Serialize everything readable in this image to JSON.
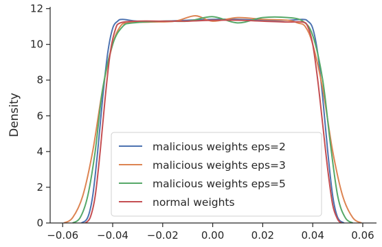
{
  "chart_data": {
    "type": "line",
    "title": "",
    "xlabel": "",
    "ylabel": "Density",
    "xlim": [
      -0.065,
      0.0655
    ],
    "ylim": [
      0,
      12.1
    ],
    "x_ticks": [
      -0.06,
      -0.04,
      -0.02,
      0.0,
      0.02,
      0.04,
      0.06
    ],
    "x_tick_labels": [
      "−0.06",
      "−0.04",
      "−0.02",
      "0.00",
      "0.02",
      "0.04",
      "0.06"
    ],
    "y_ticks": [
      0,
      2,
      4,
      6,
      8,
      10,
      12
    ],
    "y_tick_labels": [
      "0",
      "2",
      "4",
      "6",
      "8",
      "10",
      "12"
    ],
    "grid": false,
    "legend_position": "bottom-center",
    "series": [
      {
        "name": "malicious weights eps=2",
        "color": "#4c72b0",
        "points": [
          [
            -0.0525,
            0
          ],
          [
            -0.05,
            0.3
          ],
          [
            -0.048,
            1.5
          ],
          [
            -0.046,
            4.0
          ],
          [
            -0.044,
            7.0
          ],
          [
            -0.042,
            9.5
          ],
          [
            -0.04,
            10.9
          ],
          [
            -0.038,
            11.3
          ],
          [
            -0.036,
            11.4
          ],
          [
            -0.03,
            11.3
          ],
          [
            -0.02,
            11.3
          ],
          [
            -0.01,
            11.35
          ],
          [
            0.0,
            11.4
          ],
          [
            0.01,
            11.4
          ],
          [
            0.02,
            11.35
          ],
          [
            0.03,
            11.35
          ],
          [
            0.036,
            11.4
          ],
          [
            0.038,
            11.3
          ],
          [
            0.04,
            10.9
          ],
          [
            0.042,
            9.5
          ],
          [
            0.044,
            7.0
          ],
          [
            0.046,
            4.0
          ],
          [
            0.048,
            1.5
          ],
          [
            0.05,
            0.3
          ],
          [
            0.0525,
            0
          ]
        ]
      },
      {
        "name": "malicious weights eps=3",
        "color": "#dd8452",
        "points": [
          [
            -0.0595,
            0
          ],
          [
            -0.056,
            0.3
          ],
          [
            -0.052,
            1.5
          ],
          [
            -0.048,
            4.0
          ],
          [
            -0.044,
            7.5
          ],
          [
            -0.04,
            10.0
          ],
          [
            -0.037,
            11.0
          ],
          [
            -0.034,
            11.2
          ],
          [
            -0.025,
            11.25
          ],
          [
            -0.015,
            11.3
          ],
          [
            -0.007,
            11.6
          ],
          [
            0.0,
            11.3
          ],
          [
            0.01,
            11.5
          ],
          [
            0.02,
            11.4
          ],
          [
            0.03,
            11.35
          ],
          [
            0.034,
            11.2
          ],
          [
            0.037,
            11.0
          ],
          [
            0.04,
            10.0
          ],
          [
            0.044,
            7.5
          ],
          [
            0.048,
            4.0
          ],
          [
            0.052,
            1.5
          ],
          [
            0.056,
            0.3
          ],
          [
            0.0595,
            0
          ]
        ]
      },
      {
        "name": "malicious weights eps=5",
        "color": "#55a868",
        "points": [
          [
            -0.056,
            0
          ],
          [
            -0.053,
            0.3
          ],
          [
            -0.05,
            1.5
          ],
          [
            -0.047,
            4.0
          ],
          [
            -0.044,
            7.5
          ],
          [
            -0.04,
            10.0
          ],
          [
            -0.036,
            11.0
          ],
          [
            -0.032,
            11.2
          ],
          [
            -0.02,
            11.3
          ],
          [
            -0.01,
            11.3
          ],
          [
            0.0,
            11.55
          ],
          [
            0.01,
            11.2
          ],
          [
            0.02,
            11.5
          ],
          [
            0.03,
            11.5
          ],
          [
            0.036,
            11.3
          ],
          [
            0.04,
            10.5
          ],
          [
            0.044,
            8.0
          ],
          [
            0.047,
            4.5
          ],
          [
            0.05,
            1.5
          ],
          [
            0.053,
            0.3
          ],
          [
            0.056,
            0
          ]
        ]
      },
      {
        "name": "normal weights",
        "color": "#c44e52",
        "points": [
          [
            -0.051,
            0
          ],
          [
            -0.049,
            0.3
          ],
          [
            -0.047,
            1.5
          ],
          [
            -0.045,
            4.0
          ],
          [
            -0.043,
            7.0
          ],
          [
            -0.041,
            9.5
          ],
          [
            -0.039,
            10.8
          ],
          [
            -0.037,
            11.2
          ],
          [
            -0.03,
            11.3
          ],
          [
            -0.02,
            11.3
          ],
          [
            -0.01,
            11.3
          ],
          [
            0.0,
            11.35
          ],
          [
            0.01,
            11.35
          ],
          [
            0.02,
            11.3
          ],
          [
            0.03,
            11.25
          ],
          [
            0.036,
            11.25
          ],
          [
            0.038,
            11.0
          ],
          [
            0.04,
            10.0
          ],
          [
            0.042,
            8.0
          ],
          [
            0.044,
            5.5
          ],
          [
            0.046,
            3.0
          ],
          [
            0.048,
            1.0
          ],
          [
            0.05,
            0.2
          ],
          [
            0.0515,
            0
          ]
        ]
      }
    ]
  }
}
